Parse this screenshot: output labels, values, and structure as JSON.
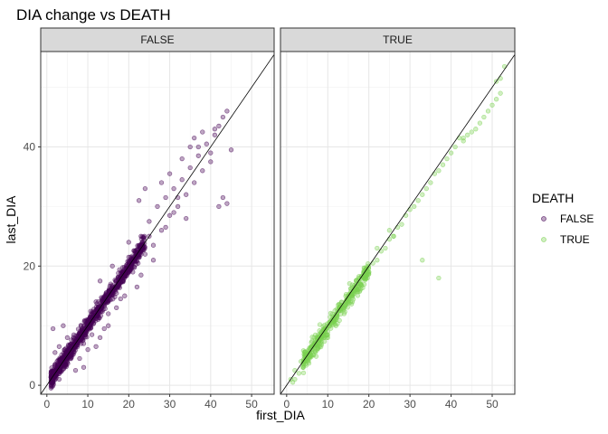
{
  "chart_data": {
    "type": "scatter",
    "title": "DIA change vs DEATH",
    "xlabel": "first_DIA",
    "ylabel": "last_DIA",
    "xlim": [
      -1.5,
      55.5
    ],
    "ylim": [
      -1.5,
      56
    ],
    "x_ticks": [
      0,
      10,
      20,
      30,
      40,
      50
    ],
    "x_tick_labels": [
      "0",
      "10",
      "20",
      "30",
      "40",
      "50"
    ],
    "y_ticks": [
      0,
      20,
      40
    ],
    "y_tick_labels": [
      "0",
      "20",
      "40"
    ],
    "grid": true,
    "reference_line": "y = x",
    "legend": {
      "title": "DEATH",
      "position": "right",
      "entries": [
        {
          "label": "FALSE",
          "color": "#440154"
        },
        {
          "label": "TRUE",
          "color": "#7AD151"
        }
      ]
    },
    "facets": [
      {
        "label": "FALSE",
        "color": "#440154",
        "dense_band": {
          "x_range": [
            1,
            24
          ],
          "slope": 1.0,
          "spread": 1.4
        },
        "points": [
          [
            1,
            0.5
          ],
          [
            1,
            2
          ],
          [
            1.5,
            9.5
          ],
          [
            2,
            5.5
          ],
          [
            2.5,
            4
          ],
          [
            3,
            6.5
          ],
          [
            4,
            10
          ],
          [
            3,
            1
          ],
          [
            5,
            8
          ],
          [
            7,
            2.5
          ],
          [
            8,
            4.5
          ],
          [
            9,
            3
          ],
          [
            10,
            6
          ],
          [
            11,
            8.5
          ],
          [
            12,
            14
          ],
          [
            13,
            17.5
          ],
          [
            14,
            9.5
          ],
          [
            15,
            12
          ],
          [
            16,
            20
          ],
          [
            18,
            14.5
          ],
          [
            19,
            18
          ],
          [
            20,
            24
          ],
          [
            21,
            19
          ],
          [
            22,
            16.5
          ],
          [
            23,
            25
          ],
          [
            24,
            22
          ],
          [
            25,
            27.5
          ],
          [
            26,
            23.5
          ],
          [
            27,
            30
          ],
          [
            28,
            26
          ],
          [
            29,
            31.5
          ],
          [
            30,
            28.5
          ],
          [
            31,
            33
          ],
          [
            32,
            30
          ],
          [
            33,
            34.5
          ],
          [
            34,
            32
          ],
          [
            35,
            36.5
          ],
          [
            36,
            34
          ],
          [
            37,
            38.5
          ],
          [
            38,
            36
          ],
          [
            39,
            40.5
          ],
          [
            40,
            37.5
          ],
          [
            41,
            42
          ],
          [
            42,
            43.5
          ],
          [
            43,
            45
          ],
          [
            44,
            46
          ],
          [
            45,
            39.5
          ],
          [
            42,
            30
          ],
          [
            44,
            30.5
          ],
          [
            43,
            31.5
          ],
          [
            32,
            31.5
          ],
          [
            24,
            33
          ],
          [
            22.5,
            31
          ],
          [
            28,
            34
          ],
          [
            30,
            35.5
          ],
          [
            33,
            38
          ],
          [
            35,
            40
          ],
          [
            36,
            41.5
          ],
          [
            37,
            40
          ],
          [
            38,
            42.5
          ],
          [
            40,
            39
          ],
          [
            41,
            43
          ],
          [
            34,
            28
          ],
          [
            29,
            26.5
          ],
          [
            26,
            21
          ],
          [
            23,
            18.5
          ],
          [
            19,
            15
          ],
          [
            17,
            13
          ],
          [
            15,
            10
          ],
          [
            13,
            8
          ],
          [
            12,
            6.5
          ],
          [
            9,
            7
          ],
          [
            20,
            21.5
          ],
          [
            25,
            25
          ],
          [
            31,
            29
          ]
        ]
      },
      {
        "label": "TRUE",
        "color": "#7AD151",
        "dense_band": {
          "x_range": [
            4,
            20
          ],
          "slope": 0.97,
          "spread": 1.6
        },
        "points": [
          [
            1,
            1
          ],
          [
            1.5,
            0.5
          ],
          [
            2,
            2.5
          ],
          [
            3,
            2
          ],
          [
            3.5,
            4
          ],
          [
            4,
            3
          ],
          [
            4.5,
            5.5
          ],
          [
            5,
            4.5
          ],
          [
            5.5,
            6
          ],
          [
            6,
            5
          ],
          [
            7,
            7
          ],
          [
            8,
            6.5
          ],
          [
            9,
            8.5
          ],
          [
            10,
            9
          ],
          [
            11,
            10.5
          ],
          [
            12,
            11
          ],
          [
            13,
            12.5
          ],
          [
            14,
            13
          ],
          [
            15,
            14.5
          ],
          [
            16,
            15
          ],
          [
            17,
            16.5
          ],
          [
            18,
            17
          ],
          [
            19,
            18.5
          ],
          [
            20,
            19
          ],
          [
            21,
            20.5
          ],
          [
            22,
            21
          ],
          [
            23,
            22.5
          ],
          [
            24,
            23
          ],
          [
            25,
            24.5
          ],
          [
            26,
            25
          ],
          [
            27,
            26.5
          ],
          [
            28,
            27
          ],
          [
            29,
            28.5
          ],
          [
            30,
            29.5
          ],
          [
            31,
            30
          ],
          [
            32,
            31
          ],
          [
            33,
            32
          ],
          [
            34,
            33
          ],
          [
            35,
            34
          ],
          [
            36,
            35.5
          ],
          [
            37,
            36
          ],
          [
            38,
            37
          ],
          [
            39,
            38
          ],
          [
            40,
            39
          ],
          [
            41,
            40
          ],
          [
            42,
            41.5
          ],
          [
            43,
            41
          ],
          [
            44,
            42
          ],
          [
            45,
            42.5
          ],
          [
            46,
            43
          ],
          [
            47,
            44
          ],
          [
            48,
            45
          ],
          [
            49,
            46
          ],
          [
            50,
            47
          ],
          [
            51,
            48
          ],
          [
            52,
            49
          ],
          [
            53,
            53.5
          ],
          [
            52,
            51.5
          ],
          [
            51,
            51
          ],
          [
            43,
            41.5
          ],
          [
            37,
            18
          ],
          [
            33,
            21
          ],
          [
            25,
            26
          ],
          [
            26,
            25
          ],
          [
            22,
            23
          ],
          [
            20,
            19
          ],
          [
            18,
            17
          ],
          [
            16,
            14
          ],
          [
            14,
            12
          ],
          [
            12,
            10
          ],
          [
            10,
            8
          ],
          [
            8,
            7
          ],
          [
            6,
            5
          ],
          [
            4,
            3
          ],
          [
            2,
            1
          ]
        ]
      }
    ]
  }
}
